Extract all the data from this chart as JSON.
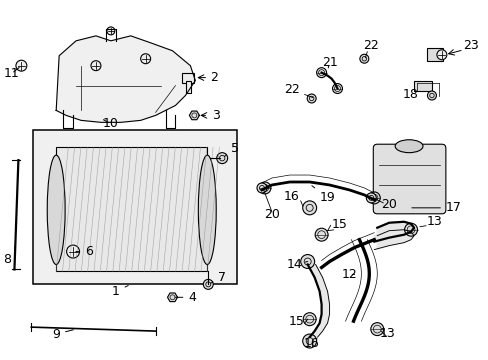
{
  "bg_color": "#ffffff",
  "line_color": "#000000",
  "label_color": "#000000",
  "font_size": 9
}
